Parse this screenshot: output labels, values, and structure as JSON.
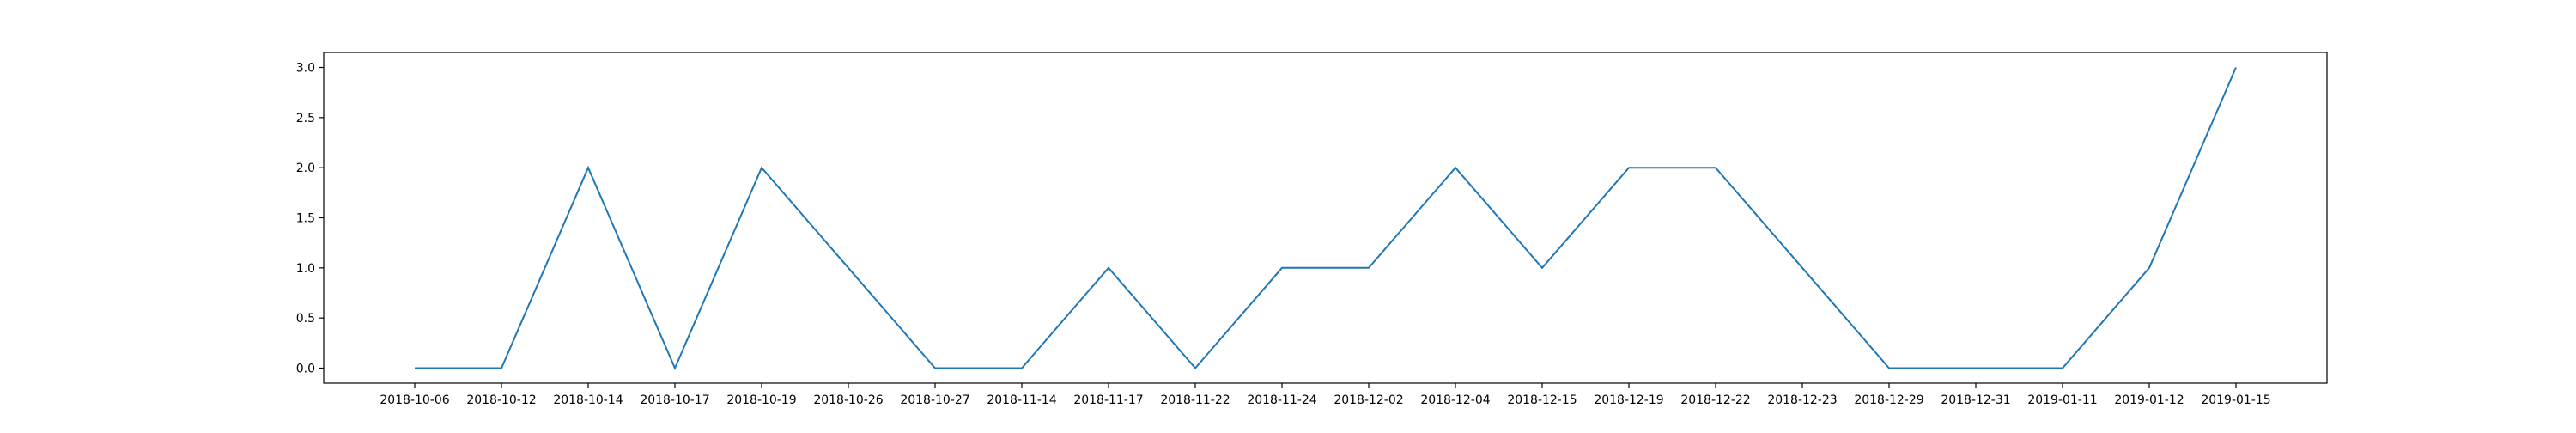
{
  "chart_data": {
    "type": "line",
    "title": "",
    "xlabel": "",
    "ylabel": "",
    "categories": [
      "2018-10-06",
      "2018-10-12",
      "2018-10-14",
      "2018-10-17",
      "2018-10-19",
      "2018-10-26",
      "2018-10-27",
      "2018-11-14",
      "2018-11-17",
      "2018-11-22",
      "2018-11-24",
      "2018-12-02",
      "2018-12-04",
      "2018-12-15",
      "2018-12-19",
      "2018-12-22",
      "2018-12-23",
      "2018-12-29",
      "2018-12-31",
      "2019-01-11",
      "2019-01-12",
      "2019-01-15"
    ],
    "series": [
      {
        "values": [
          0,
          0,
          2,
          0,
          2,
          1,
          0,
          0,
          1,
          0,
          1,
          1,
          2,
          1,
          2,
          2,
          1,
          0,
          0,
          0,
          1,
          3
        ],
        "color": "#1f77b4"
      }
    ],
    "ylim": [
      -0.15,
      3.15
    ],
    "yticks": [
      "0.0",
      "0.5",
      "1.0",
      "1.5",
      "2.0",
      "2.5",
      "3.0"
    ],
    "grid": false,
    "legend": false
  }
}
